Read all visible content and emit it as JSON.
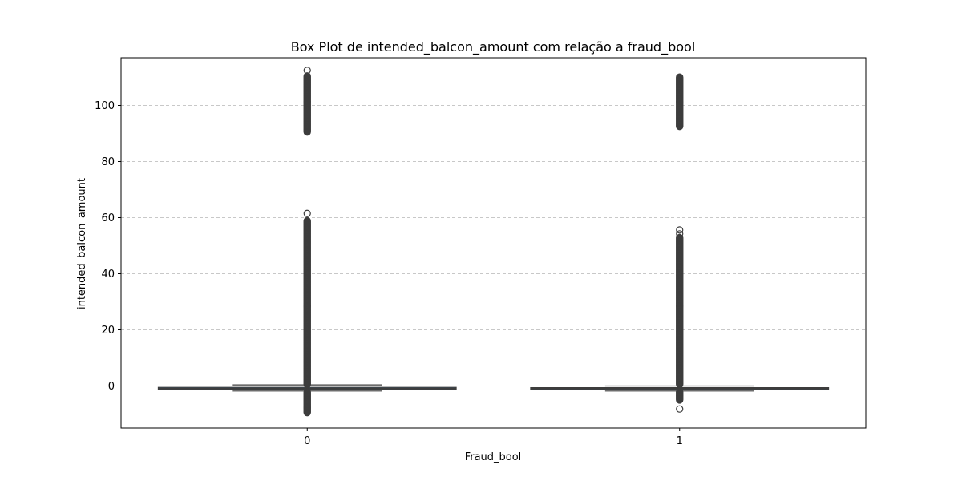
{
  "chart_data": {
    "type": "box",
    "title": "Box Plot de intended_balcon_amount com relação a fraud_bool",
    "xlabel": "Fraud_bool",
    "ylabel": "intended_balcon_amount",
    "categories": [
      "0",
      "1"
    ],
    "ylim": [
      -15,
      117
    ],
    "yticks": [
      0,
      20,
      40,
      60,
      80,
      100
    ],
    "grid": "y-dashed",
    "colors": {
      "box": "#3a6f97",
      "line": "#3d3d3d",
      "grid": "#c8c8c8",
      "frame": "#000000"
    },
    "boxes": [
      {
        "category": "0",
        "q1": -1.2,
        "median": -0.9,
        "q3": -0.5,
        "whisker_low": -1.8,
        "whisker_high": 0.4,
        "outlier_upper_min": 0.5,
        "outlier_upper_max": 59,
        "outlier_upper_extra": [
          61.5
        ],
        "outlier_high_cluster": [
          90.5,
          110.5
        ],
        "outlier_high_extra": [
          112.5
        ],
        "outlier_lower": [
          -9.5,
          -2
        ]
      },
      {
        "category": "1",
        "q1": -1.2,
        "median": -0.9,
        "q3": -0.6,
        "whisker_low": -1.8,
        "whisker_high": 0.0,
        "outlier_upper_min": 0.5,
        "outlier_upper_max": 53,
        "outlier_upper_extra": [
          54.2,
          55.6
        ],
        "outlier_high_cluster": [
          92.5,
          110.2
        ],
        "outlier_high_extra": [],
        "outlier_lower": [
          -5,
          -2
        ],
        "outlier_lower_extra": [
          -8.2
        ]
      }
    ]
  }
}
